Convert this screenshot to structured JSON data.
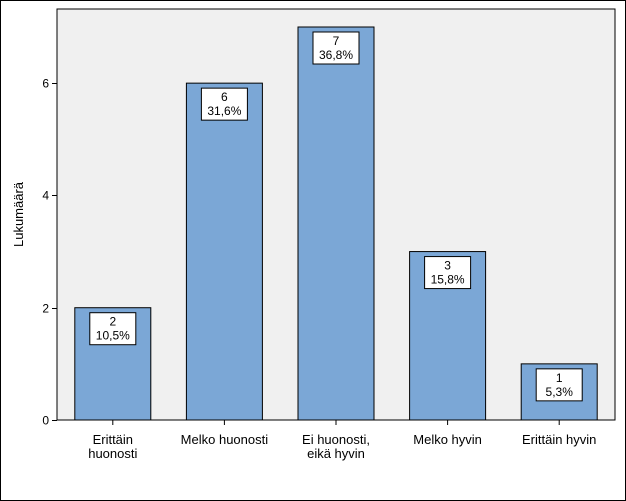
{
  "chart_data": {
    "type": "bar",
    "title": "",
    "xlabel": "",
    "ylabel": "Lukumäärä",
    "ylim": [
      0,
      7
    ],
    "yticks": [
      0,
      2,
      4,
      6
    ],
    "grid": false,
    "categories": [
      [
        "Erittäin",
        "huonosti"
      ],
      [
        "Melko huonosti"
      ],
      [
        "Ei huonosti,",
        "eikä hyvin"
      ],
      [
        "Melko hyvin"
      ],
      [
        "Erittäin hyvin"
      ]
    ],
    "values": [
      2,
      6,
      7,
      3,
      1
    ],
    "percent_labels": [
      "10,5%",
      "31,6%",
      "36,8%",
      "15,8%",
      "5,3%"
    ],
    "bar_color": "#7ba7d6",
    "plot_background": "#f0f0f0"
  }
}
